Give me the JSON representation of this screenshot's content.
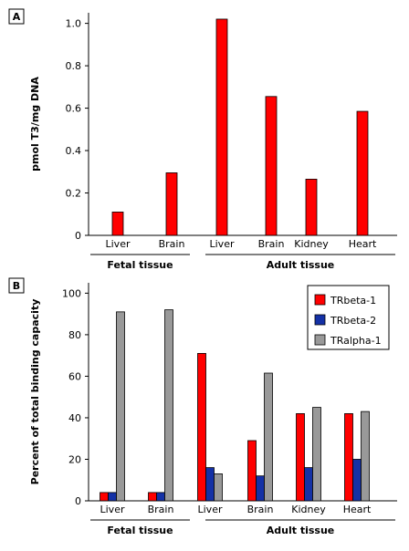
{
  "chart_data": [
    {
      "type": "bar",
      "panel_label": "A",
      "ylabel": "pmol T3/mg DNA",
      "ylim": [
        0,
        1.05
      ],
      "yticks": [
        "0",
        "0.2",
        "0.4",
        "0.6",
        "0.8",
        "1.0"
      ],
      "categories": [
        "Liver",
        "Brain",
        "Liver",
        "Brain",
        "Kidney",
        "Heart"
      ],
      "groups": [
        {
          "label": "Fetal tissue",
          "categories": [
            0,
            1
          ]
        },
        {
          "label": "Adult tissue",
          "categories": [
            2,
            3,
            4,
            5
          ]
        }
      ],
      "series": [
        {
          "name": "",
          "color": "#ff0000",
          "values": [
            0.11,
            0.295,
            1.02,
            0.655,
            0.265,
            0.585
          ]
        }
      ],
      "grid": false
    },
    {
      "type": "bar",
      "panel_label": "B",
      "ylabel": "Percent of total binding capacity",
      "ylim": [
        0,
        105
      ],
      "yticks": [
        "0",
        "20",
        "40",
        "60",
        "80",
        "100"
      ],
      "categories": [
        "Liver",
        "Brain",
        "Liver",
        "Brain",
        "Kidney",
        "Heart"
      ],
      "groups": [
        {
          "label": "Fetal tissue",
          "categories": [
            0,
            1
          ]
        },
        {
          "label": "Adult tissue",
          "categories": [
            2,
            3,
            4,
            5
          ]
        }
      ],
      "series": [
        {
          "name": "TRbeta-1",
          "color": "#ff0000",
          "values": [
            4,
            4,
            71,
            29,
            42,
            42
          ]
        },
        {
          "name": "TRbeta-2",
          "color": "#1431a6",
          "values": [
            4,
            4,
            16,
            12,
            16,
            20
          ]
        },
        {
          "name": "TRalpha-1",
          "color": "#999999",
          "values": [
            91,
            92,
            13,
            61.5,
            45,
            43
          ]
        }
      ],
      "legend": "top-right",
      "grid": false
    }
  ]
}
